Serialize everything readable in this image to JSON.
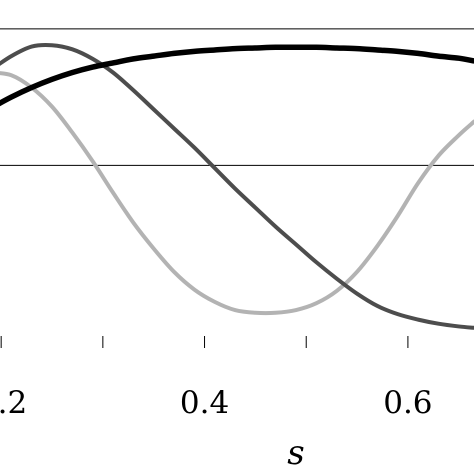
{
  "chart_data": {
    "type": "line",
    "xlabel": "s",
    "ylabel": "",
    "title": "",
    "xlim": [
      0.19,
      0.665
    ],
    "ylim": [
      -1.25,
      1.05
    ],
    "grid": true,
    "gridlines_y": [
      1.0,
      0.0
    ],
    "x_ticks": [
      0.2,
      0.3,
      0.4,
      0.5,
      0.6
    ],
    "x_tick_labels": [
      {
        "x": 0.2,
        "label": ".2"
      },
      {
        "x": 0.4,
        "label": "0.4"
      },
      {
        "x": 0.6,
        "label": "0.6"
      }
    ],
    "series": [
      {
        "color": "#000000",
        "width": 5.5,
        "x": [
          0.19,
          0.21,
          0.23,
          0.25,
          0.27,
          0.29,
          0.31,
          0.33,
          0.35,
          0.37,
          0.39,
          0.41,
          0.43,
          0.45,
          0.47,
          0.49,
          0.51,
          0.53,
          0.55,
          0.57,
          0.59,
          0.61,
          0.63,
          0.65,
          0.665
        ],
        "y": [
          0.42,
          0.5,
          0.57,
          0.63,
          0.68,
          0.72,
          0.75,
          0.78,
          0.8,
          0.82,
          0.835,
          0.845,
          0.855,
          0.86,
          0.865,
          0.865,
          0.865,
          0.86,
          0.855,
          0.845,
          0.835,
          0.82,
          0.8,
          0.785,
          0.765
        ]
      },
      {
        "color": "#4d4d4d",
        "width": 4,
        "x": [
          0.19,
          0.21,
          0.23,
          0.25,
          0.27,
          0.29,
          0.31,
          0.33,
          0.35,
          0.37,
          0.39,
          0.41,
          0.43,
          0.45,
          0.47,
          0.49,
          0.51,
          0.53,
          0.55,
          0.57,
          0.59,
          0.61,
          0.63,
          0.65,
          0.665
        ],
        "y": [
          0.7,
          0.8,
          0.87,
          0.88,
          0.85,
          0.78,
          0.68,
          0.55,
          0.41,
          0.27,
          0.13,
          -0.02,
          -0.17,
          -0.31,
          -0.45,
          -0.58,
          -0.71,
          -0.83,
          -0.94,
          -1.03,
          -1.09,
          -1.13,
          -1.16,
          -1.18,
          -1.19
        ]
      },
      {
        "color": "#b3b3b3",
        "width": 4,
        "x": [
          0.19,
          0.21,
          0.23,
          0.25,
          0.27,
          0.29,
          0.31,
          0.33,
          0.35,
          0.37,
          0.39,
          0.41,
          0.43,
          0.45,
          0.47,
          0.49,
          0.51,
          0.53,
          0.55,
          0.57,
          0.59,
          0.61,
          0.63,
          0.65,
          0.665
        ],
        "y": [
          0.68,
          0.66,
          0.57,
          0.43,
          0.24,
          0.03,
          -0.2,
          -0.42,
          -0.61,
          -0.78,
          -0.91,
          -1.0,
          -1.06,
          -1.08,
          -1.08,
          -1.06,
          -1.01,
          -0.92,
          -0.78,
          -0.59,
          -0.37,
          -0.13,
          0.07,
          0.22,
          0.32
        ]
      }
    ]
  }
}
